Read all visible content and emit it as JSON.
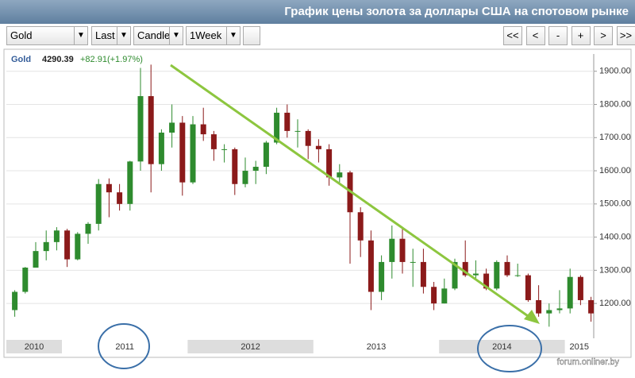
{
  "header": {
    "title": "График цены золота за доллары США на спотовом рынке"
  },
  "toolbar": {
    "selects": [
      "Gold",
      "Last",
      "Candle",
      "1Week"
    ],
    "buttons": [
      "<<",
      "<",
      "-",
      "+",
      ">",
      ">>"
    ]
  },
  "watermark": "forum.onliner.by",
  "chart_data": {
    "type": "candlestick",
    "symbol": "Gold",
    "last": 4290.39,
    "change": "+82.91(+1.97%)",
    "up_color": "#2e8b2e",
    "down_color": "#8b1a1a",
    "year_labels": [
      "2010",
      "2011",
      "2012",
      "2013",
      "2014",
      "2015"
    ],
    "categories": [
      null,
      null,
      null,
      null,
      null,
      null,
      null,
      null,
      null,
      null,
      null,
      null,
      null,
      null,
      null,
      null,
      null,
      null,
      null,
      null,
      null,
      null,
      null,
      null,
      null,
      null,
      null,
      null,
      null,
      null,
      null,
      null,
      null,
      null,
      null,
      null,
      null,
      null,
      null,
      null,
      null,
      null,
      null,
      null,
      null,
      null,
      null,
      null,
      null,
      null,
      null,
      null,
      null,
      null,
      null,
      null
    ],
    "open": [
      1180,
      1235,
      1308,
      1358,
      1385,
      1420,
      1333,
      1410,
      1440,
      1560,
      1535,
      1500,
      1628,
      1825,
      1620,
      1715,
      1745,
      1565,
      1740,
      1710,
      1665,
      1665,
      1560,
      1600,
      1612,
      1685,
      1775,
      1720,
      1720,
      1675,
      1665,
      1580,
      1595,
      1475,
      1390,
      1235,
      1325,
      1395,
      1325,
      1325,
      1250,
      1200,
      1245,
      1325,
      1285,
      1290,
      1245,
      1325,
      1285,
      1285,
      1210,
      1170,
      1180,
      1185,
      1280,
      1210
    ],
    "high": [
      1240,
      1310,
      1385,
      1420,
      1430,
      1425,
      1415,
      1445,
      1575,
      1577,
      1560,
      1630,
      1910,
      1920,
      1725,
      1800,
      1765,
      1765,
      1790,
      1720,
      1680,
      1670,
      1640,
      1630,
      1690,
      1790,
      1800,
      1755,
      1725,
      1695,
      1680,
      1620,
      1600,
      1490,
      1420,
      1345,
      1435,
      1425,
      1365,
      1365,
      1265,
      1275,
      1335,
      1390,
      1330,
      1305,
      1330,
      1345,
      1320,
      1290,
      1255,
      1200,
      1240,
      1305,
      1285,
      1220
    ],
    "low": [
      1160,
      1230,
      1310,
      1330,
      1360,
      1310,
      1330,
      1380,
      1420,
      1460,
      1480,
      1480,
      1600,
      1535,
      1600,
      1670,
      1525,
      1560,
      1690,
      1630,
      1625,
      1527,
      1550,
      1560,
      1590,
      1680,
      1700,
      1670,
      1635,
      1625,
      1555,
      1565,
      1320,
      1340,
      1180,
      1210,
      1275,
      1290,
      1250,
      1230,
      1180,
      1200,
      1240,
      1280,
      1270,
      1240,
      1240,
      1280,
      1280,
      1205,
      1160,
      1130,
      1170,
      1170,
      1195,
      1145
    ],
    "close": [
      1235,
      1308,
      1358,
      1385,
      1420,
      1333,
      1410,
      1440,
      1560,
      1535,
      1500,
      1628,
      1825,
      1620,
      1715,
      1745,
      1565,
      1740,
      1710,
      1665,
      1665,
      1560,
      1600,
      1612,
      1685,
      1775,
      1720,
      1720,
      1675,
      1665,
      1580,
      1595,
      1475,
      1390,
      1235,
      1325,
      1395,
      1325,
      1325,
      1250,
      1200,
      1245,
      1325,
      1285,
      1290,
      1245,
      1325,
      1285,
      1285,
      1210,
      1170,
      1180,
      1185,
      1280,
      1210,
      1170
    ],
    "ylim": [
      1095,
      1952
    ],
    "yticks": [
      {
        "value": 1200,
        "label": "1200.00"
      },
      {
        "value": 1300,
        "label": "1300.00"
      },
      {
        "value": 1400,
        "label": "1400.00"
      },
      {
        "value": 1500,
        "label": "1500.00"
      },
      {
        "value": 1600,
        "label": "1600.00"
      },
      {
        "value": 1700,
        "label": "1700.00"
      },
      {
        "value": 1800,
        "label": "1800.00"
      },
      {
        "value": 1900,
        "label": "1900.00"
      }
    ],
    "grid": true
  }
}
